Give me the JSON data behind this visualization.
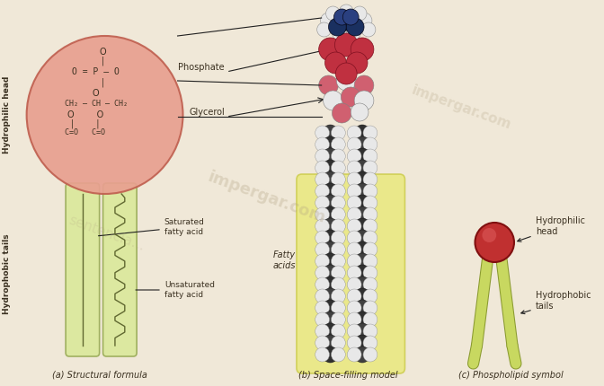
{
  "bg_color": "#f0e8d8",
  "panels": {
    "a_label": "(a) Structural formula",
    "b_label": "(b) Space-filling model",
    "c_label": "(c) Phospholipid symbol"
  },
  "left_label": "Hydrophilic head",
  "left_label2": "Hydrophobic tails",
  "annotations": {
    "phosphate": "Phosphate",
    "glycerol": "Glycerol",
    "saturated": "Saturated\nfatty acid",
    "unsaturated": "Unsaturated\nfatty acid",
    "fatty_acids": "Fatty\nacids",
    "hydrophilic_head": "Hydrophilic\nhead",
    "hydrophobic_tails": "Hydrophobic\ntails"
  },
  "colors": {
    "head_fill": "#e8a090",
    "head_edge": "#c06050",
    "tail_fill": "#dce8a0",
    "tail_edge": "#a0b060",
    "label_text": "#3a3020",
    "line_color": "#202020",
    "red_sphere": "#c03040",
    "pink_sphere": "#d06070",
    "white_sphere": "#e8e8e8",
    "dark_sphere": "#383838",
    "symbol_head": "#c03030",
    "symbol_tail": "#c8d860",
    "symbol_tail_edge": "#8a9a30"
  }
}
